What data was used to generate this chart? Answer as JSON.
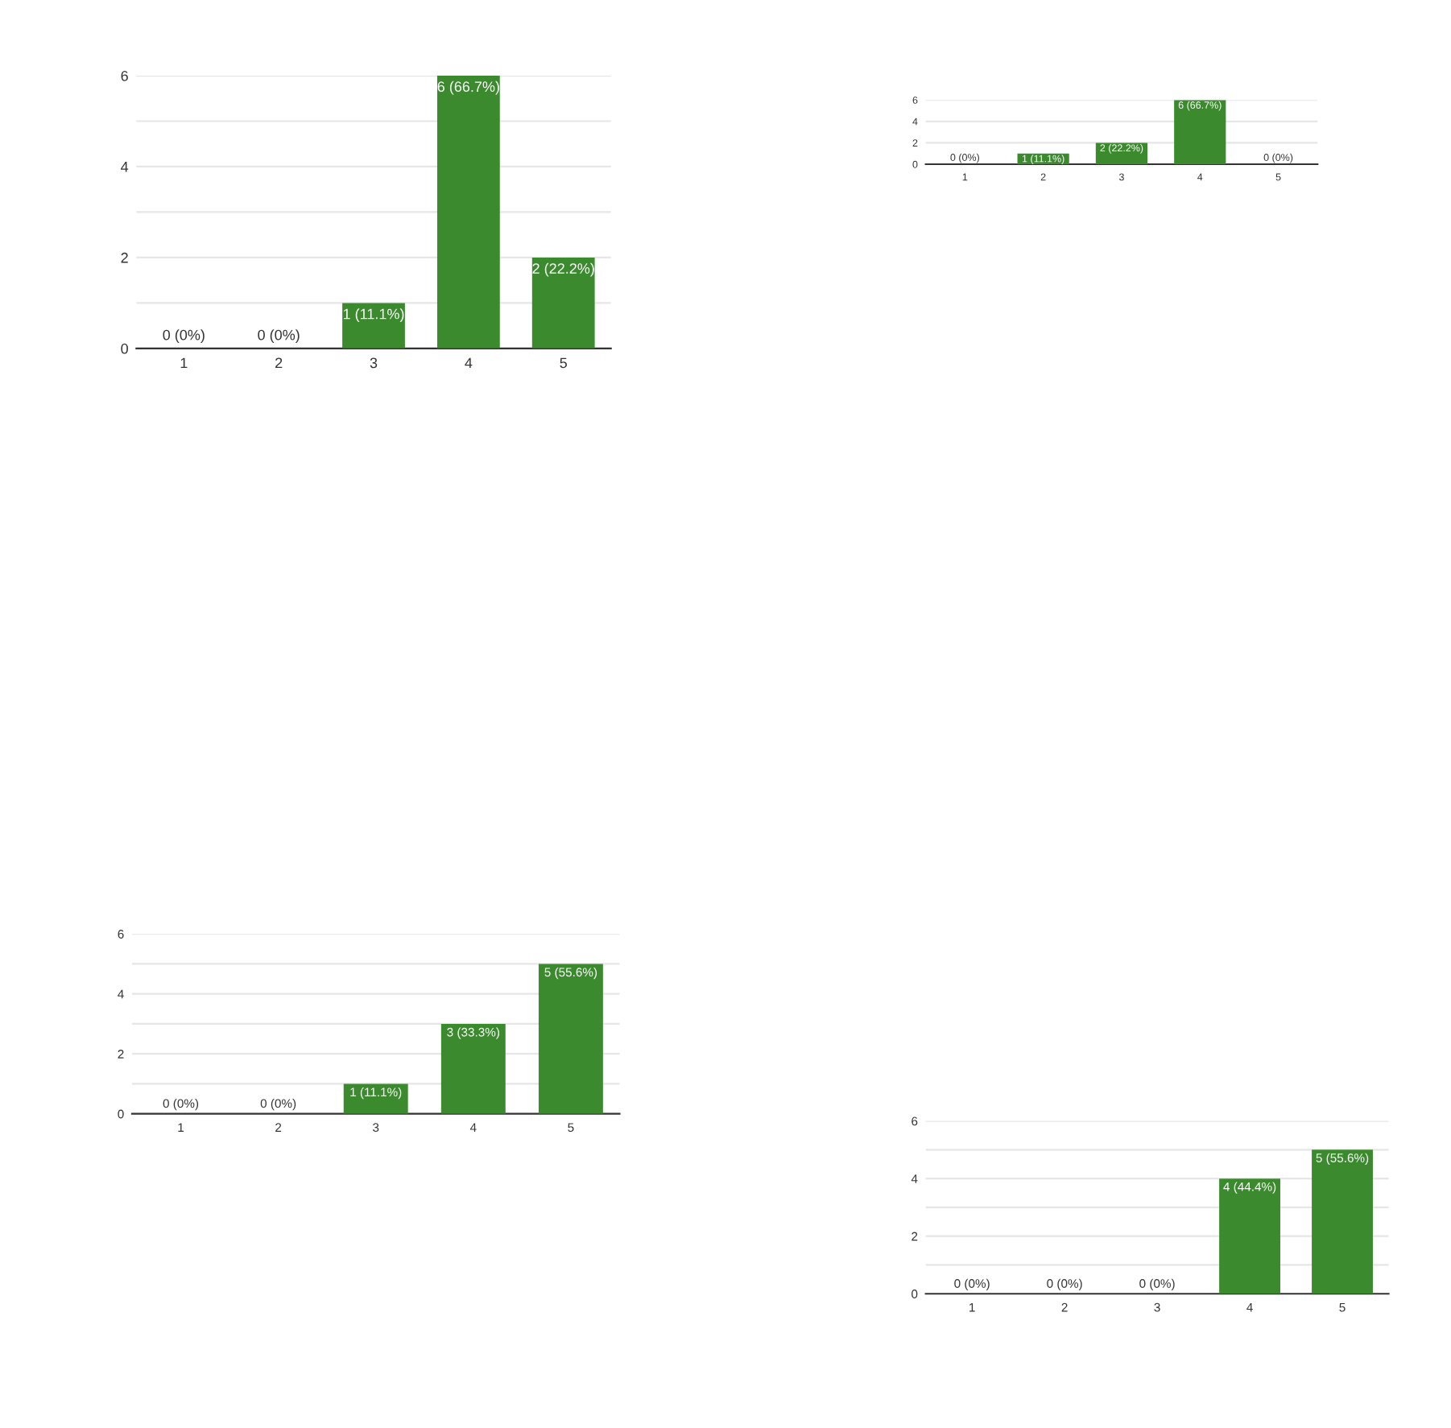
{
  "chart_data": [
    {
      "type": "bar",
      "categories": [
        "1",
        "2",
        "3",
        "4",
        "5"
      ],
      "values": [
        0,
        0,
        1,
        6,
        2
      ],
      "value_labels": [
        "0 (0%)",
        "0 (0%)",
        "1 (11.1%)",
        "6 (66.7%)",
        "2 (22.2%)"
      ],
      "color": "#3b8b2e",
      "ylim": [
        0,
        6
      ],
      "yticks": [
        0,
        {
          "value": 1,
          "label": null
        },
        2,
        {
          "value": 3,
          "label": null
        },
        4,
        {
          "value": 5,
          "label": null
        },
        6
      ],
      "grid": "y"
    },
    {
      "type": "bar",
      "categories": [
        "1",
        "2",
        "3",
        "4",
        "5"
      ],
      "values": [
        0,
        1,
        2,
        6,
        0
      ],
      "value_labels": [
        "0 (0%)",
        "1 (11.1%)",
        "2 (22.2%)",
        "6 (66.7%)",
        "0 (0%)"
      ],
      "color": "#3b8b2e",
      "ylim": [
        0,
        6
      ],
      "yticks": [
        0,
        2,
        4,
        6
      ],
      "grid": "y"
    },
    {
      "type": "bar",
      "categories": [
        "1",
        "2",
        "3",
        "4",
        "5"
      ],
      "values": [
        0,
        0,
        1,
        3,
        5
      ],
      "value_labels": [
        "0 (0%)",
        "0 (0%)",
        "1 (11.1%)",
        "3 (33.3%)",
        "5 (55.6%)"
      ],
      "color": "#3b8b2e",
      "ylim": [
        0,
        6
      ],
      "yticks": [
        0,
        {
          "value": 1,
          "label": null
        },
        2,
        {
          "value": 3,
          "label": null
        },
        4,
        {
          "value": 5,
          "label": null
        },
        6
      ],
      "grid": "y"
    },
    {
      "type": "bar",
      "categories": [
        "1",
        "2",
        "3",
        "4",
        "5"
      ],
      "values": [
        0,
        0,
        0,
        4,
        5
      ],
      "value_labels": [
        "0 (0%)",
        "0 (0%)",
        "0 (0%)",
        "4 (44.4%)",
        "5 (55.6%)"
      ],
      "color": "#3b8b2e",
      "ylim": [
        0,
        6
      ],
      "yticks": [
        0,
        {
          "value": 1,
          "label": null
        },
        2,
        {
          "value": 3,
          "label": null
        },
        4,
        {
          "value": 5,
          "label": null
        },
        6
      ],
      "grid": "y"
    }
  ]
}
